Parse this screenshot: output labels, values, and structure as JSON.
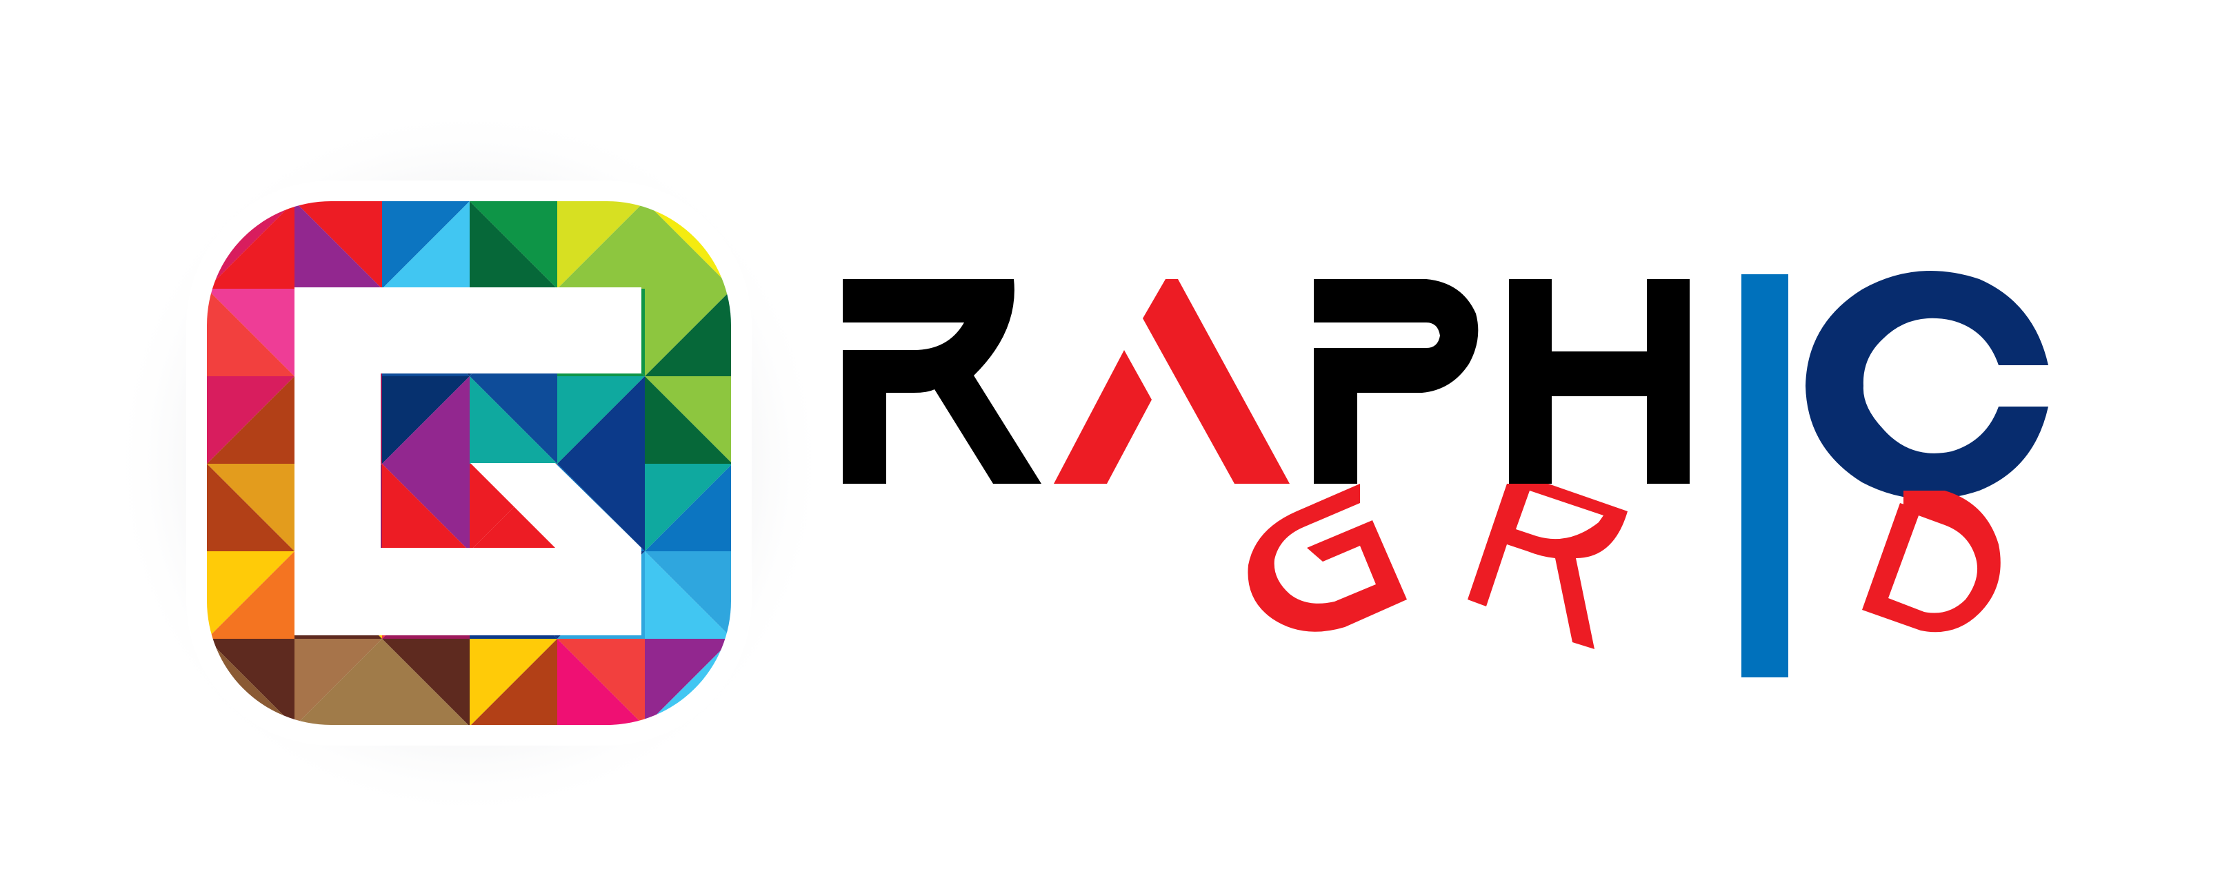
{
  "logo": {
    "wordmark_top": "RAPHIC",
    "wordmark_bottom": "GRID",
    "icon_letter": "G",
    "icon": "mosaic-triangle-g-icon",
    "colors": {
      "black": "#000000",
      "red": "#ED1C24",
      "blue": "#0071BC",
      "navy": "#072C6E",
      "frame": "#ffffff"
    },
    "palette": [
      "#ED1C24",
      "#92278F",
      "#41C6F2",
      "#0C75C1",
      "#0E9547",
      "#066839",
      "#D7E022",
      "#8DC63F",
      "#F4EB10",
      "#EE3D96",
      "#F2403E",
      "#D81D5E",
      "#9E1A5C",
      "#B24017",
      "#E39C1D",
      "#F47421",
      "#FFCB08",
      "#5E2A1F",
      "#8A5A34",
      "#A7744A",
      "#A07B49",
      "#06316F",
      "#0E4C99",
      "#0FA99F",
      "#0C3A8A",
      "#2FA6DE",
      "#EF1073"
    ]
  }
}
